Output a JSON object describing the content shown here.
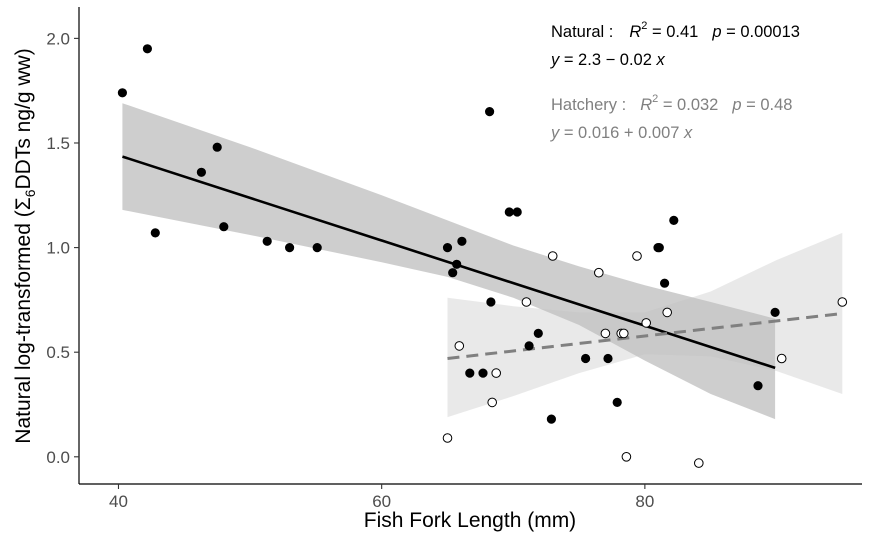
{
  "chart_data": {
    "type": "scatter",
    "title": "",
    "xlabel": "Fish Fork Length (mm)",
    "ylabel_prefix": "Natural log-transformed (",
    "ylabel_sigma": "Σ",
    "ylabel_sub": "6",
    "ylabel_suffix": "DDTs ng/g ww)",
    "xlim": [
      37,
      96.5
    ],
    "ylim": [
      -0.13,
      2.15
    ],
    "x_ticks": [
      40,
      60,
      80
    ],
    "x_tick_labels": [
      "40",
      "60",
      "80"
    ],
    "y_ticks": [
      0.0,
      0.5,
      1.0,
      1.5,
      2.0
    ],
    "y_tick_labels": [
      "0.0",
      "0.5",
      "1.0",
      "1.5",
      "2.0"
    ],
    "grid": false,
    "series": [
      {
        "name": "Natural",
        "marker": "filled-circle",
        "color": "#000000",
        "fit": {
          "x0": 40.3,
          "y0": 1.435,
          "x1": 89.9,
          "y1": 0.425,
          "style": "solid"
        },
        "band": {
          "x": [
            40.3,
            50,
            60,
            65,
            70,
            75,
            80,
            85,
            89.9
          ],
          "upper": [
            1.69,
            1.48,
            1.25,
            1.13,
            1.01,
            0.91,
            0.82,
            0.74,
            0.66
          ],
          "lower": [
            1.18,
            1.06,
            0.93,
            0.86,
            0.76,
            0.63,
            0.46,
            0.3,
            0.18
          ]
        },
        "x": [
          40.3,
          42.2,
          42.8,
          46.3,
          47.5,
          48.0,
          51.3,
          53.0,
          55.1,
          65.0,
          65.4,
          65.7,
          66.1,
          66.7,
          67.7,
          68.2,
          68.3,
          69.7,
          70.3,
          71.2,
          71.9,
          72.9,
          75.5,
          77.2,
          77.9,
          81.0,
          81.1,
          81.5,
          82.2,
          88.6,
          89.9
        ],
        "y": [
          1.74,
          1.95,
          1.07,
          1.36,
          1.48,
          1.1,
          1.03,
          1.0,
          1.0,
          1.0,
          0.88,
          0.92,
          1.03,
          0.4,
          0.4,
          1.65,
          0.74,
          1.17,
          1.17,
          0.53,
          0.59,
          0.18,
          0.47,
          0.47,
          0.26,
          1.0,
          1.0,
          0.83,
          1.13,
          0.34,
          0.69
        ]
      },
      {
        "name": "Hatchery",
        "marker": "open-circle",
        "color": "#000000",
        "fit": {
          "x0": 65.0,
          "y0": 0.47,
          "x1": 95.0,
          "y1": 0.685,
          "style": "dashed"
        },
        "band": {
          "x": [
            65.0,
            70,
            75,
            80,
            85,
            90,
            95.0
          ],
          "upper": [
            0.76,
            0.72,
            0.69,
            0.69,
            0.79,
            0.94,
            1.07
          ],
          "lower": [
            0.19,
            0.29,
            0.4,
            0.49,
            0.48,
            0.41,
            0.3
          ]
        },
        "x": [
          65.0,
          65.9,
          68.4,
          68.7,
          71.0,
          73.0,
          76.5,
          77.0,
          78.2,
          78.4,
          78.6,
          79.4,
          80.1,
          81.7,
          84.1,
          90.4,
          95.0
        ],
        "y": [
          0.09,
          0.53,
          0.26,
          0.4,
          0.74,
          0.96,
          0.88,
          0.59,
          0.59,
          0.59,
          0.0,
          0.96,
          0.64,
          0.69,
          -0.03,
          0.47,
          0.74
        ]
      }
    ],
    "annotations": {
      "natural": {
        "label": "Natural :",
        "r2_text": "R",
        "r2_sup": "2",
        "r2_value": " = 0.41",
        "p_label": "p",
        "p_value": " = 0.00013",
        "eq_y": "y",
        "eq_body": " = 2.3 − 0.02 ",
        "eq_x": "x",
        "color": "#000000"
      },
      "hatchery": {
        "label": "Hatchery :",
        "r2_text": "R",
        "r2_sup": "2",
        "r2_value": " = 0.032",
        "p_label": "p",
        "p_value": " = 0.48",
        "eq_y": "y",
        "eq_body": " = 0.016 + 0.007 ",
        "eq_x": "x",
        "color": "#808080"
      }
    }
  }
}
